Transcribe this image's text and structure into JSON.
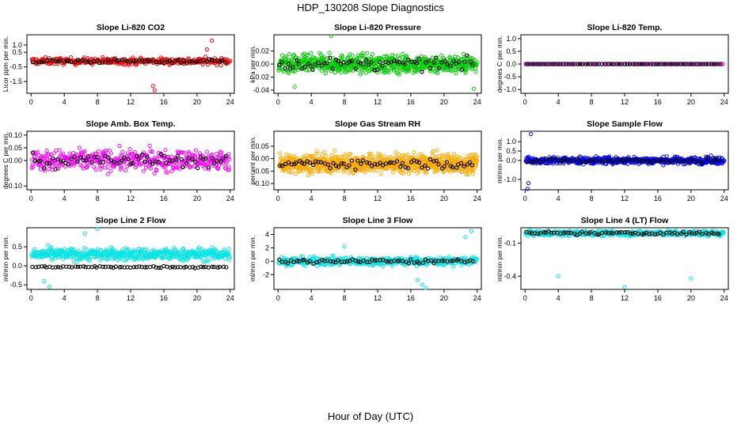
{
  "figure": {
    "title": "HDP_130208  Slope Diagnostics",
    "xlabel": "Hour of Day (UTC)"
  },
  "chart_data": [
    {
      "type": "scatter",
      "title": "Slope Li-820 CO2",
      "ylabel": "Licor ppm per min.",
      "xlim": [
        -0.5,
        24.5
      ],
      "xticks": [
        0,
        4,
        8,
        12,
        16,
        20,
        24
      ],
      "ylim": [
        -2.3,
        1.7
      ],
      "yticks": [
        "-1.5",
        "-0.5",
        "0.5",
        "1.0"
      ],
      "ytick_values": [
        -1.5,
        -0.5,
        0.5,
        1.0
      ],
      "primary_color": "#ff0000",
      "secondary_color": "#000000",
      "primary_center": -0.1,
      "primary_spread": 0.5,
      "secondary_center": -0.1,
      "secondary_spread": 0.3,
      "n_primary": 330,
      "n_secondary": 70,
      "outliers": [
        {
          "x": 14.7,
          "y": -1.8
        },
        {
          "x": 14.9,
          "y": -2.1
        },
        {
          "x": 21.8,
          "y": 1.3
        },
        {
          "x": 21.2,
          "y": 0.7
        }
      ]
    },
    {
      "type": "scatter",
      "title": "Slope Li-820 Pressure",
      "ylabel": "kPa per min.",
      "xlim": [
        -0.5,
        24.5
      ],
      "xticks": [
        0,
        4,
        8,
        12,
        16,
        20,
        24
      ],
      "ylim": [
        -0.045,
        0.045
      ],
      "yticks": [
        "-0.04",
        "-0.02",
        "0.00",
        "0.02"
      ],
      "ytick_values": [
        -0.04,
        -0.02,
        0.0,
        0.02
      ],
      "primary_color": "#00cc00",
      "secondary_color": "#000000",
      "primary_center": 0.0,
      "primary_spread": 0.03,
      "secondary_center": 0.0,
      "secondary_spread": 0.02,
      "n_primary": 700,
      "n_secondary": 70,
      "outliers": [
        {
          "x": 6.4,
          "y": 0.043
        },
        {
          "x": 2.0,
          "y": -0.035
        },
        {
          "x": 23.6,
          "y": -0.038
        }
      ]
    },
    {
      "type": "scatter",
      "title": "Slope Li-820 Temp.",
      "ylabel": "degrees C per min.",
      "xlim": [
        -0.5,
        24.5
      ],
      "xticks": [
        0,
        4,
        8,
        12,
        16,
        20,
        24
      ],
      "ylim": [
        -1.15,
        1.15
      ],
      "yticks": [
        "-1.0",
        "-0.5",
        "0.0",
        "0.5",
        "1.0"
      ],
      "ytick_values": [
        -1.0,
        -0.5,
        0.0,
        0.5,
        1.0
      ],
      "primary_color": "#cc00cc",
      "secondary_color": "#000000",
      "primary_center": 0.0,
      "primary_spread": 0.0,
      "secondary_center": 0.0,
      "secondary_spread": 0.0,
      "n_primary": 140,
      "n_secondary": 70,
      "outliers": []
    },
    {
      "type": "scatter",
      "title": "Slope Amb. Box Temp.",
      "ylabel": "degrees C per min.",
      "xlim": [
        -0.5,
        24.5
      ],
      "xticks": [
        0,
        4,
        8,
        12,
        16,
        20,
        24
      ],
      "ylim": [
        -0.115,
        0.115
      ],
      "yticks": [
        "-0.10",
        "0.00",
        "0.05",
        "0.10"
      ],
      "ytick_values": [
        -0.1,
        0.0,
        0.05,
        0.1
      ],
      "primary_color": "#ff00ff",
      "secondary_color": "#000000",
      "primary_center": 0.0,
      "primary_spread": 0.09,
      "secondary_center": 0.0,
      "secondary_spread": 0.06,
      "n_primary": 450,
      "n_secondary": 70,
      "outliers": []
    },
    {
      "type": "scatter",
      "title": "Slope Gas Stream RH",
      "ylabel": "percent per min.",
      "xlim": [
        -0.5,
        24.5
      ],
      "xticks": [
        0,
        4,
        8,
        12,
        16,
        20,
        24
      ],
      "ylim": [
        -0.125,
        0.11
      ],
      "yticks": [
        "-0.10",
        "-0.05",
        "0.00",
        "0.05"
      ],
      "ytick_values": [
        -0.1,
        -0.05,
        0.0,
        0.05
      ],
      "primary_color": "#ffaa00",
      "secondary_color": "#000000",
      "primary_center": -0.02,
      "primary_spread": 0.08,
      "secondary_center": -0.02,
      "secondary_spread": 0.04,
      "n_primary": 900,
      "n_secondary": 70,
      "outliers": []
    },
    {
      "type": "scatter",
      "title": "Slope Sample Flow",
      "ylabel": "ml/min per min.",
      "xlim": [
        -0.5,
        24.5
      ],
      "xticks": [
        0,
        4,
        8,
        12,
        16,
        20,
        24
      ],
      "ylim": [
        -1.55,
        1.55
      ],
      "yticks": [
        "-1.0",
        "0.0",
        "0.5",
        "1.0"
      ],
      "ytick_values": [
        -1.0,
        0.0,
        0.5,
        1.0
      ],
      "primary_color": "#0000ff",
      "secondary_color": "#000000",
      "primary_center": 0.0,
      "primary_spread": 0.4,
      "secondary_center": 0.0,
      "secondary_spread": 0.25,
      "n_primary": 600,
      "n_secondary": 70,
      "outliers": [
        {
          "x": 0.3,
          "y": -1.5
        },
        {
          "x": 0.4,
          "y": -1.2
        },
        {
          "x": 0.7,
          "y": 1.4
        }
      ]
    },
    {
      "type": "scatter",
      "title": "Slope Line 2 Flow",
      "ylabel": "ml/min per min.",
      "xlim": [
        -0.5,
        24.5
      ],
      "xticks": [
        0,
        4,
        8,
        12,
        16,
        20,
        24
      ],
      "ylim": [
        -0.62,
        1.0
      ],
      "yticks": [
        "-0.5",
        "0.0",
        "0.5"
      ],
      "ytick_values": [
        -0.5,
        0.0,
        0.5
      ],
      "primary_color": "#00e5e5",
      "secondary_color": "#000000",
      "primary_center": 0.3,
      "primary_spread": 0.35,
      "secondary_center": -0.03,
      "secondary_spread": 0.06,
      "n_primary": 500,
      "n_secondary": 70,
      "outliers": [
        {
          "x": 8.0,
          "y": 0.97
        },
        {
          "x": 6.5,
          "y": 0.85
        },
        {
          "x": 1.6,
          "y": -0.4
        },
        {
          "x": 2.2,
          "y": -0.55
        }
      ]
    },
    {
      "type": "scatter",
      "title": "Slope Line 3 Flow",
      "ylabel": "ml/min per min.",
      "xlim": [
        -0.5,
        24.5
      ],
      "xticks": [
        0,
        4,
        8,
        12,
        16,
        20,
        24
      ],
      "ylim": [
        -4.2,
        5.0
      ],
      "yticks": [
        "-2",
        "0",
        "2",
        "4"
      ],
      "ytick_values": [
        -2,
        0,
        2,
        4
      ],
      "primary_color": "#00e5e5",
      "secondary_color": "#000000",
      "primary_center": 0.0,
      "primary_spread": 1.3,
      "secondary_center": 0.0,
      "secondary_spread": 0.7,
      "n_primary": 500,
      "n_secondary": 70,
      "outliers": [
        {
          "x": 16.8,
          "y": -2.8
        },
        {
          "x": 17.4,
          "y": -3.5
        },
        {
          "x": 17.8,
          "y": -4.0
        },
        {
          "x": 23.3,
          "y": 4.5
        },
        {
          "x": 22.6,
          "y": 3.6
        },
        {
          "x": 8.0,
          "y": 2.2
        }
      ]
    },
    {
      "type": "scatter",
      "title": "Slope Line 4 (LT) Flow",
      "ylabel": "ml/min per min.",
      "xlim": [
        -0.5,
        24.5
      ],
      "xticks": [
        0,
        4,
        8,
        12,
        16,
        20,
        24
      ],
      "ylim": [
        -0.52,
        0.04
      ],
      "yticks": [
        "-0.4",
        "-0.1"
      ],
      "ytick_values": [
        -0.4,
        -0.1
      ],
      "primary_color": "#00e5e5",
      "secondary_color": "#000000",
      "primary_center": -0.01,
      "primary_spread": 0.05,
      "secondary_center": -0.01,
      "secondary_spread": 0.03,
      "n_primary": 500,
      "n_secondary": 70,
      "outliers": [
        {
          "x": 4.0,
          "y": -0.4
        },
        {
          "x": 12.0,
          "y": -0.5
        },
        {
          "x": 20.0,
          "y": -0.42
        }
      ]
    }
  ]
}
